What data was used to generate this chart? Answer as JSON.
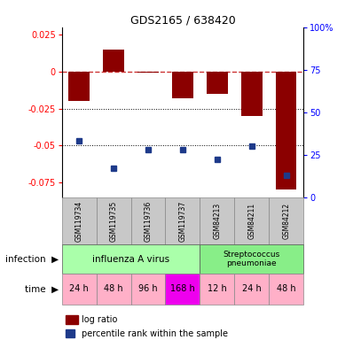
{
  "title": "GDS2165 / 638420",
  "samples": [
    "GSM119734",
    "GSM119735",
    "GSM119736",
    "GSM119737",
    "GSM84213",
    "GSM84211",
    "GSM84212"
  ],
  "log_ratio": [
    -0.02,
    0.015,
    -0.001,
    -0.018,
    -0.015,
    -0.03,
    -0.08
  ],
  "percentile_rank": [
    33,
    17,
    28,
    28,
    22,
    30,
    13
  ],
  "ylim_left": [
    -0.085,
    0.03
  ],
  "ylim_right": [
    0.0,
    100.0
  ],
  "yticks_left": [
    0.025,
    0.0,
    -0.025,
    -0.05,
    -0.075
  ],
  "ytick_labels_left": [
    "0.025",
    "0",
    "-0.025",
    "-0.05",
    "-0.075"
  ],
  "yticks_right": [
    100,
    75,
    50,
    25,
    0
  ],
  "ytick_labels_right": [
    "100%",
    "75",
    "50",
    "25",
    "0"
  ],
  "bar_color": "#8B0000",
  "dot_color": "#1E3A8A",
  "dashed_line_color": "#CC3333",
  "time_labels": [
    "24 h",
    "48 h",
    "96 h",
    "168 h",
    "12 h",
    "24 h",
    "48 h"
  ],
  "time_colors_all": [
    "#FFB0C8",
    "#FFB0C8",
    "#FFB0C8",
    "#EE00EE",
    "#FFB0C8",
    "#FFB0C8",
    "#FFB0C8"
  ],
  "infection_label": "infection",
  "time_label": "time",
  "legend_bar_label": "log ratio",
  "legend_dot_label": "percentile rank within the sample",
  "n_samples": 7,
  "gsm_bg": "#C8C8C8",
  "influenza_color": "#AAFFAA",
  "strep_color": "#88EE88"
}
